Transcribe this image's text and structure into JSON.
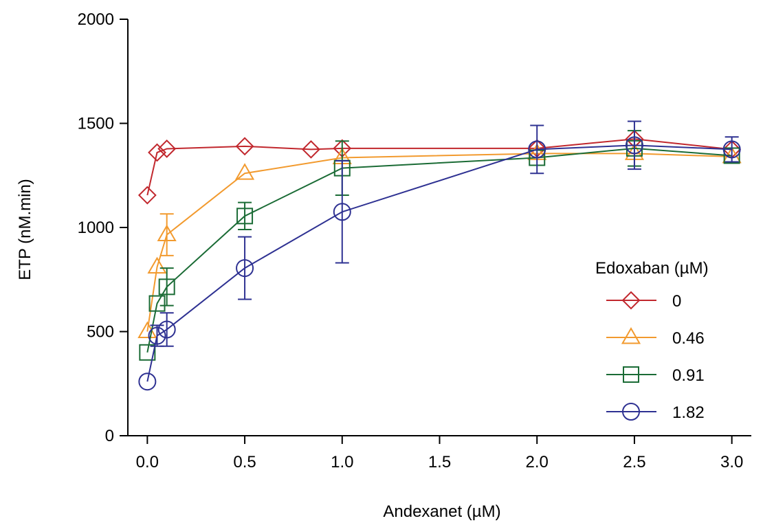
{
  "chart_data": {
    "type": "line",
    "xlabel": "Andexanet (µM)",
    "ylabel": "ETP (nM.min)",
    "xlim": [
      -0.1,
      3.1
    ],
    "ylim": [
      0,
      2000
    ],
    "x_ticks": [
      0.0,
      0.5,
      1.0,
      1.5,
      2.0,
      2.5,
      3.0
    ],
    "x_tick_labels": [
      "0.0",
      "0.5",
      "1.0",
      "1.5",
      "2.0",
      "2.5",
      "3.0"
    ],
    "y_ticks": [
      0,
      500,
      1000,
      1500,
      2000
    ],
    "y_tick_labels": [
      "0",
      "500",
      "1000",
      "1500",
      "2000"
    ],
    "grid": false,
    "legend": {
      "title": "Edoxaban (µM)",
      "position": "right"
    },
    "series": [
      {
        "name": "0",
        "color": "#C1272D",
        "marker": "diamond",
        "x": [
          0,
          0.05,
          0.1,
          0.5,
          0.84,
          1.0,
          2.0,
          2.5,
          3.0
        ],
        "y": [
          1155,
          1360,
          1378,
          1390,
          1375,
          1380,
          1380,
          1425,
          1375
        ],
        "err": [
          0,
          0,
          0,
          0,
          0,
          0,
          0,
          0,
          0
        ]
      },
      {
        "name": "0.46",
        "color": "#F29A2E",
        "marker": "triangle",
        "x": [
          0,
          0.05,
          0.1,
          0.5,
          1.0,
          2.0,
          2.5,
          3.0
        ],
        "y": [
          500,
          810,
          965,
          1260,
          1335,
          1355,
          1355,
          1340
        ],
        "err": [
          0,
          0,
          100,
          0,
          0,
          0,
          0,
          0
        ]
      },
      {
        "name": "0.91",
        "color": "#1A6B35",
        "marker": "square",
        "x": [
          0,
          0.05,
          0.1,
          0.5,
          1.0,
          2.0,
          2.5,
          3.0
        ],
        "y": [
          400,
          635,
          715,
          1055,
          1285,
          1335,
          1380,
          1345
        ],
        "err": [
          0,
          0,
          90,
          65,
          130,
          0,
          85,
          0
        ]
      },
      {
        "name": "1.82",
        "color": "#2E3192",
        "marker": "circle",
        "x": [
          0,
          0.05,
          0.1,
          0.5,
          1.0,
          2.0,
          2.5,
          3.0
        ],
        "y": [
          260,
          480,
          510,
          805,
          1075,
          1375,
          1395,
          1375
        ],
        "err": [
          0,
          50,
          80,
          150,
          245,
          115,
          115,
          60
        ]
      }
    ]
  }
}
